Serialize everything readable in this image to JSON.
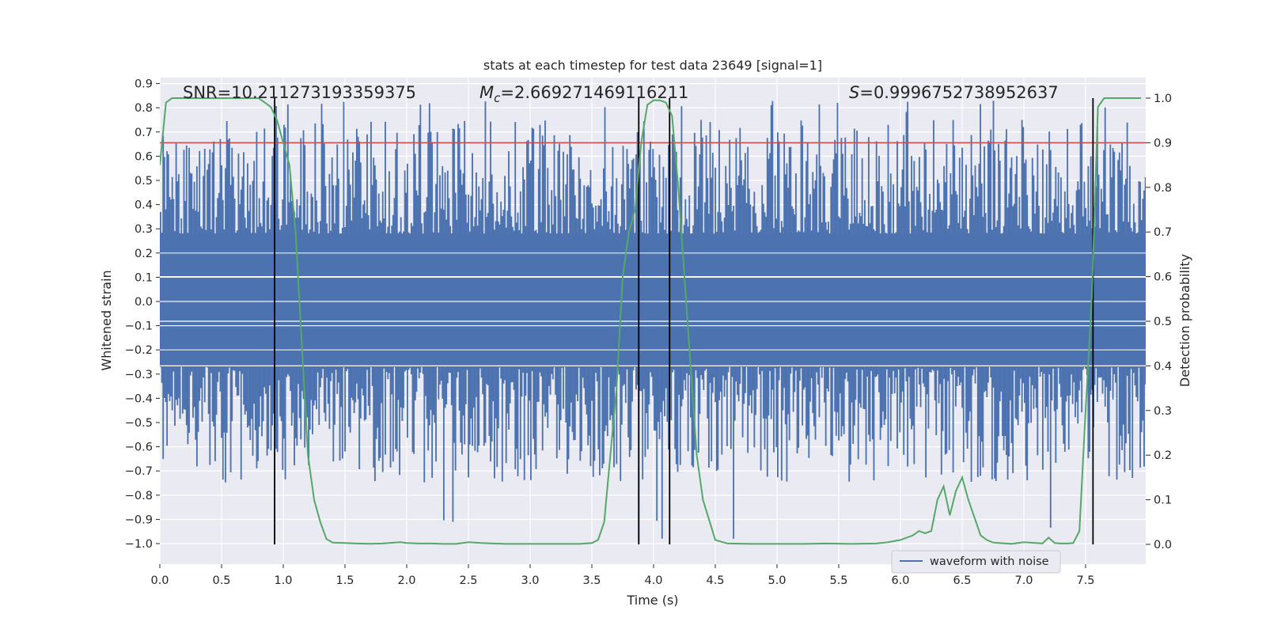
{
  "chart_data": {
    "type": "line",
    "title": "stats at each timestep for test data 23649 [signal=1]",
    "xlabel": "Time (s)",
    "ylabel": "Whitened strain",
    "y2label": "Detection probability",
    "xlim": [
      0.0,
      8.0
    ],
    "ylim": [
      -1.09,
      0.93
    ],
    "y2lim": [
      -0.045,
      1.055
    ],
    "x_ticks": [
      0.0,
      0.5,
      1.0,
      1.5,
      2.0,
      2.5,
      3.0,
      3.5,
      4.0,
      4.5,
      5.0,
      5.5,
      6.0,
      6.5,
      7.0,
      7.5
    ],
    "x_tick_labels": [
      "0.0",
      "0.5",
      "1.0",
      "1.5",
      "2.0",
      "2.5",
      "3.0",
      "3.5",
      "4.0",
      "4.5",
      "5.0",
      "5.5",
      "6.0",
      "6.5",
      "7.0",
      "7.5"
    ],
    "y_ticks": [
      0.9,
      0.8,
      0.7,
      0.6,
      0.5,
      0.4,
      0.3,
      0.2,
      0.1,
      0.0,
      -0.1,
      -0.2,
      -0.3,
      -0.4,
      -0.5,
      -0.6,
      -0.7,
      -0.8,
      -0.9,
      -1.0
    ],
    "y_tick_labels": [
      "0.9",
      "0.8",
      "0.7",
      "0.6",
      "0.5",
      "0.4",
      "0.3",
      "0.2",
      "0.1",
      "0.0",
      "−0.1",
      "−0.2",
      "−0.3",
      "−0.4",
      "−0.5",
      "−0.6",
      "−0.7",
      "−0.8",
      "−0.9",
      "−1.0"
    ],
    "y2_ticks": [
      1.0,
      0.9,
      0.8,
      0.7,
      0.6,
      0.5,
      0.4,
      0.3,
      0.2,
      0.1,
      0.0
    ],
    "y2_tick_labels": [
      "1.0",
      "0.9",
      "0.8",
      "0.7",
      "0.6",
      "0.5",
      "0.4",
      "0.3",
      "0.2",
      "0.1",
      "0.0"
    ],
    "annotations": {
      "snr": "SNR=10.211273193359375",
      "mc_symbol": "M",
      "mc_sub": "c",
      "mc_value": "=2.669271469116211",
      "s_symbol": "S",
      "s_value": "=0.9996752738952637"
    },
    "threshold_line": {
      "y2": 0.9,
      "color": "#c44e52"
    },
    "vertical_lines": [
      0.93,
      3.88,
      4.13,
      7.56
    ],
    "waveform": {
      "name": "waveform with noise",
      "color": "#4c72b0",
      "n_bars": 760,
      "core_high": 0.28,
      "core_low": -0.27,
      "typical_max": 0.75,
      "typical_min": -0.75,
      "extreme_max": 0.83,
      "extreme_min": -1.0
    },
    "probability": {
      "color": "#55a868",
      "x": [
        0.0,
        0.05,
        0.1,
        0.2,
        0.3,
        0.4,
        0.5,
        0.6,
        0.7,
        0.8,
        0.85,
        0.9,
        0.95,
        1.0,
        1.05,
        1.1,
        1.15,
        1.2,
        1.25,
        1.3,
        1.35,
        1.4,
        1.5,
        1.6,
        1.7,
        1.8,
        1.9,
        1.95,
        2.0,
        2.1,
        2.2,
        2.3,
        2.4,
        2.5,
        2.6,
        2.7,
        2.8,
        2.9,
        3.0,
        3.1,
        3.2,
        3.3,
        3.4,
        3.5,
        3.55,
        3.6,
        3.65,
        3.7,
        3.75,
        3.8,
        3.85,
        3.9,
        3.95,
        4.0,
        4.05,
        4.1,
        4.15,
        4.2,
        4.25,
        4.3,
        4.35,
        4.4,
        4.5,
        4.6,
        4.8,
        5.0,
        5.2,
        5.4,
        5.6,
        5.8,
        5.9,
        6.0,
        6.05,
        6.1,
        6.15,
        6.2,
        6.25,
        6.3,
        6.35,
        6.4,
        6.45,
        6.5,
        6.55,
        6.6,
        6.65,
        6.7,
        6.75,
        6.8,
        6.9,
        7.0,
        7.1,
        7.15,
        7.2,
        7.25,
        7.3,
        7.35,
        7.4,
        7.45,
        7.5,
        7.55,
        7.6,
        7.65,
        7.7,
        7.75,
        7.8,
        7.85,
        7.95
      ],
      "y": [
        0.85,
        0.99,
        1.0,
        1.0,
        1.0,
        1.0,
        1.0,
        1.0,
        1.0,
        1.0,
        0.99,
        0.98,
        0.95,
        0.9,
        0.85,
        0.7,
        0.45,
        0.2,
        0.1,
        0.05,
        0.012,
        0.004,
        0.003,
        0.002,
        0.0015,
        0.002,
        0.004,
        0.005,
        0.003,
        0.002,
        0.002,
        0.001,
        0.001,
        0.005,
        0.003,
        0.002,
        0.001,
        0.001,
        0.001,
        0.001,
        0.001,
        0.001,
        0.001,
        0.003,
        0.01,
        0.05,
        0.2,
        0.35,
        0.6,
        0.7,
        0.75,
        0.9,
        0.985,
        0.995,
        0.995,
        0.99,
        0.96,
        0.8,
        0.6,
        0.4,
        0.2,
        0.1,
        0.01,
        0.002,
        0.001,
        0.001,
        0.001,
        0.002,
        0.001,
        0.002,
        0.005,
        0.01,
        0.015,
        0.02,
        0.03,
        0.025,
        0.03,
        0.1,
        0.13,
        0.065,
        0.12,
        0.15,
        0.1,
        0.06,
        0.02,
        0.01,
        0.004,
        0.003,
        0.001,
        0.005,
        0.003,
        0.002,
        0.015,
        0.003,
        0.002,
        0.002,
        0.003,
        0.03,
        0.3,
        0.55,
        0.98,
        1.0,
        1.0,
        1.0,
        1.0,
        1.0,
        1.0
      ]
    },
    "legend": {
      "label": "waveform with noise",
      "position": "lower-right"
    }
  }
}
